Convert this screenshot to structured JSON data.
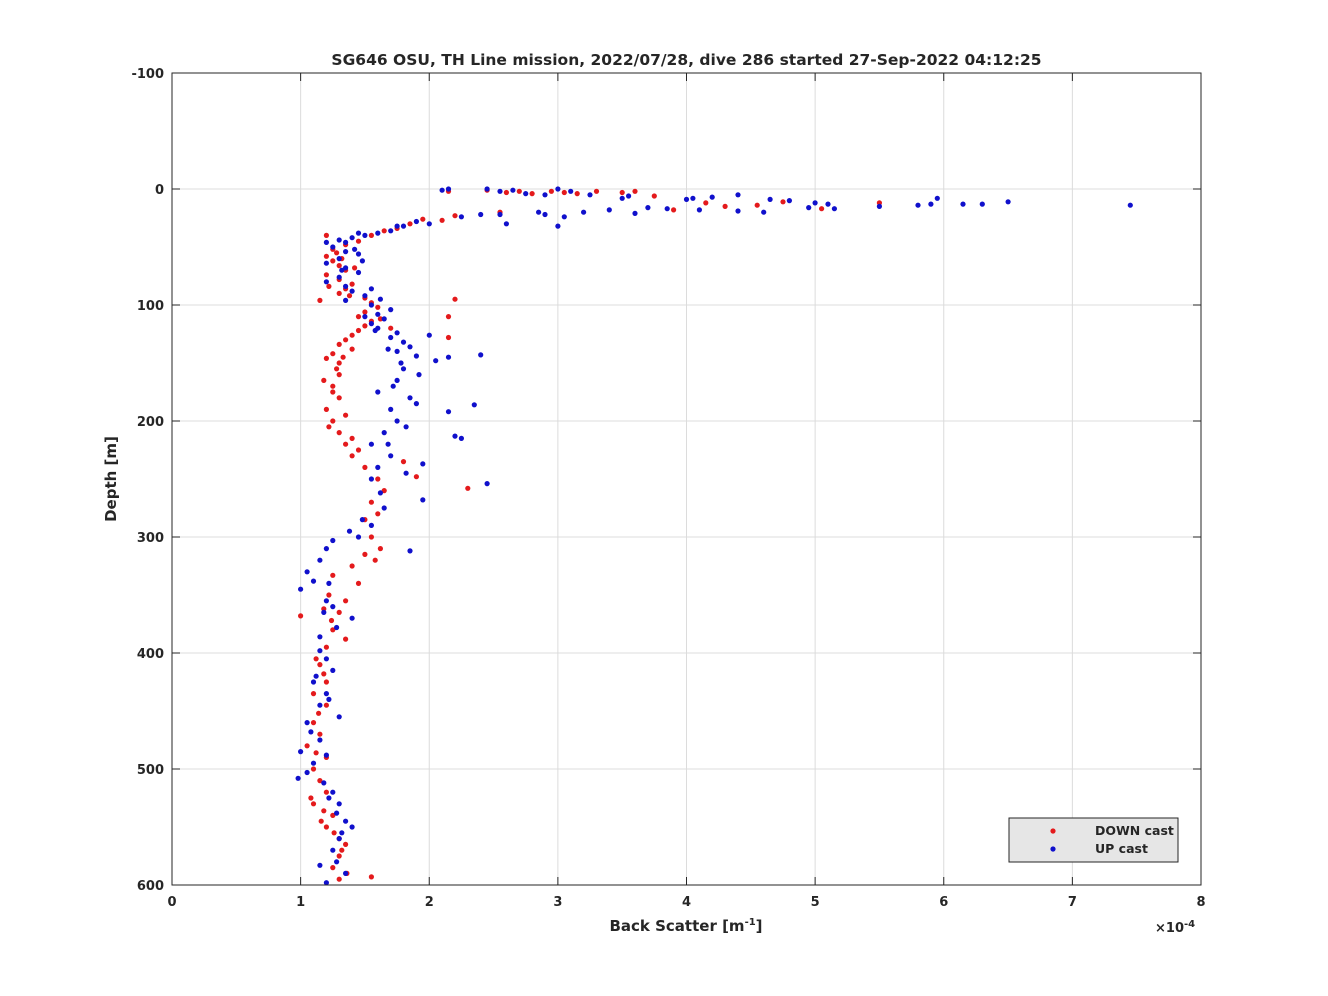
{
  "chart_data": {
    "type": "scatter",
    "title": "SG646 OSU, TH Line mission, 2022/07/28, dive 286 started 27-Sep-2022 04:12:25",
    "xlabel": "Back Scatter [m",
    "xlabel_sup": "-1",
    "xlabel_close": "]",
    "ylabel": "Depth [m]",
    "x_multiplier": "×10",
    "x_multiplier_exp": "-4",
    "xlim": [
      0,
      8
    ],
    "ylim": [
      -100,
      600
    ],
    "y_reversed": true,
    "grid": true,
    "legend_position": "bottom-right",
    "xticks": [
      0,
      1,
      2,
      3,
      4,
      5,
      6,
      7,
      8
    ],
    "xtick_labels": [
      "0",
      "1",
      "2",
      "3",
      "4",
      "5",
      "6",
      "7",
      "8"
    ],
    "yticks": [
      -100,
      0,
      100,
      200,
      300,
      400,
      500,
      600
    ],
    "ytick_labels": [
      "-100",
      "0",
      "100",
      "200",
      "300",
      "400",
      "500",
      "600"
    ],
    "series": [
      {
        "name": "DOWN cast",
        "color": "#e41a1c",
        "points": [
          [
            2.15,
            2
          ],
          [
            2.45,
            1
          ],
          [
            2.6,
            3
          ],
          [
            2.7,
            2
          ],
          [
            2.8,
            4
          ],
          [
            2.95,
            2
          ],
          [
            3.05,
            3
          ],
          [
            3.15,
            4
          ],
          [
            3.3,
            2
          ],
          [
            3.5,
            3
          ],
          [
            3.6,
            2
          ],
          [
            3.75,
            6
          ],
          [
            3.9,
            18
          ],
          [
            4.15,
            12
          ],
          [
            4.3,
            15
          ],
          [
            4.55,
            14
          ],
          [
            4.75,
            11
          ],
          [
            5.05,
            17
          ],
          [
            5.5,
            12
          ],
          [
            2.55,
            20
          ],
          [
            2.2,
            23
          ],
          [
            2.1,
            27
          ],
          [
            1.95,
            26
          ],
          [
            1.85,
            30
          ],
          [
            1.75,
            34
          ],
          [
            1.65,
            36
          ],
          [
            1.55,
            40
          ],
          [
            1.45,
            45
          ],
          [
            1.35,
            48
          ],
          [
            1.25,
            52
          ],
          [
            1.2,
            58
          ],
          [
            1.25,
            62
          ],
          [
            1.3,
            66
          ],
          [
            1.35,
            70
          ],
          [
            1.2,
            74
          ],
          [
            1.3,
            78
          ],
          [
            1.4,
            82
          ],
          [
            1.35,
            86
          ],
          [
            1.3,
            90
          ],
          [
            1.5,
            94
          ],
          [
            1.55,
            98
          ],
          [
            1.6,
            102
          ],
          [
            1.5,
            106
          ],
          [
            1.45,
            110
          ],
          [
            1.55,
            114
          ],
          [
            1.5,
            118
          ],
          [
            1.45,
            122
          ],
          [
            1.4,
            126
          ],
          [
            1.35,
            130
          ],
          [
            1.3,
            134
          ],
          [
            1.4,
            138
          ],
          [
            1.25,
            142
          ],
          [
            1.2,
            146
          ],
          [
            1.3,
            150
          ],
          [
            2.2,
            95
          ],
          [
            2.15,
            110
          ],
          [
            2.15,
            128
          ],
          [
            1.3,
            160
          ],
          [
            1.25,
            170
          ],
          [
            1.3,
            180
          ],
          [
            1.2,
            190
          ],
          [
            1.25,
            200
          ],
          [
            1.3,
            210
          ],
          [
            1.35,
            220
          ],
          [
            1.4,
            230
          ],
          [
            1.5,
            240
          ],
          [
            1.6,
            250
          ],
          [
            1.65,
            260
          ],
          [
            2.3,
            258
          ],
          [
            1.55,
            270
          ],
          [
            1.5,
            285
          ],
          [
            1.55,
            300
          ],
          [
            1.5,
            315
          ],
          [
            1.4,
            325
          ],
          [
            1.45,
            340
          ],
          [
            1.35,
            355
          ],
          [
            1.3,
            365
          ],
          [
            1.0,
            368
          ],
          [
            1.25,
            380
          ],
          [
            1.35,
            388
          ],
          [
            1.2,
            395
          ],
          [
            1.15,
            410
          ],
          [
            1.2,
            425
          ],
          [
            1.1,
            435
          ],
          [
            1.2,
            445
          ],
          [
            1.1,
            460
          ],
          [
            1.15,
            470
          ],
          [
            1.05,
            480
          ],
          [
            1.2,
            490
          ],
          [
            1.1,
            500
          ],
          [
            1.15,
            510
          ],
          [
            1.2,
            520
          ],
          [
            1.1,
            530
          ],
          [
            1.25,
            540
          ],
          [
            1.2,
            550
          ],
          [
            1.3,
            560
          ],
          [
            1.35,
            565
          ],
          [
            1.3,
            575
          ],
          [
            1.25,
            585
          ],
          [
            1.3,
            595
          ],
          [
            1.55,
            593
          ],
          [
            1.2,
            40
          ],
          [
            1.28,
            55
          ],
          [
            1.32,
            60
          ],
          [
            1.42,
            68
          ],
          [
            1.22,
            84
          ],
          [
            1.38,
            92
          ],
          [
            1.62,
            112
          ],
          [
            1.7,
            120
          ],
          [
            1.15,
            96
          ],
          [
            1.33,
            145
          ],
          [
            1.28,
            155
          ],
          [
            1.18,
            165
          ],
          [
            1.25,
            175
          ],
          [
            1.35,
            195
          ],
          [
            1.22,
            205
          ],
          [
            1.4,
            215
          ],
          [
            1.45,
            225
          ],
          [
            1.8,
            235
          ],
          [
            1.9,
            248
          ],
          [
            1.6,
            280
          ],
          [
            1.62,
            310
          ],
          [
            1.58,
            320
          ],
          [
            1.25,
            333
          ],
          [
            1.22,
            350
          ],
          [
            1.18,
            362
          ],
          [
            1.24,
            372
          ],
          [
            1.12,
            405
          ],
          [
            1.18,
            418
          ],
          [
            1.14,
            452
          ],
          [
            1.12,
            486
          ],
          [
            1.08,
            525
          ],
          [
            1.18,
            536
          ],
          [
            1.16,
            545
          ],
          [
            1.26,
            555
          ],
          [
            1.32,
            570
          ],
          [
            1.36,
            590
          ]
        ]
      },
      {
        "name": "UP cast",
        "color": "#1010cc",
        "points": [
          [
            2.1,
            1
          ],
          [
            2.15,
            0
          ],
          [
            2.45,
            0
          ],
          [
            2.55,
            2
          ],
          [
            2.65,
            1
          ],
          [
            2.75,
            4
          ],
          [
            2.9,
            5
          ],
          [
            3.0,
            0
          ],
          [
            3.1,
            2
          ],
          [
            3.25,
            5
          ],
          [
            3.5,
            8
          ],
          [
            3.55,
            6
          ],
          [
            4.0,
            9
          ],
          [
            4.05,
            8
          ],
          [
            4.2,
            7
          ],
          [
            4.4,
            5
          ],
          [
            4.65,
            9
          ],
          [
            4.8,
            10
          ],
          [
            5.0,
            12
          ],
          [
            5.1,
            13
          ],
          [
            5.5,
            15
          ],
          [
            5.8,
            14
          ],
          [
            5.9,
            13
          ],
          [
            5.95,
            8
          ],
          [
            6.15,
            13
          ],
          [
            6.3,
            13
          ],
          [
            6.5,
            11
          ],
          [
            7.45,
            14
          ],
          [
            3.7,
            16
          ],
          [
            3.85,
            17
          ],
          [
            4.1,
            18
          ],
          [
            4.4,
            19
          ],
          [
            4.6,
            20
          ],
          [
            4.95,
            16
          ],
          [
            5.15,
            17
          ],
          [
            3.4,
            18
          ],
          [
            3.6,
            21
          ],
          [
            2.55,
            22
          ],
          [
            2.85,
            20
          ],
          [
            3.05,
            24
          ],
          [
            3.2,
            20
          ],
          [
            2.4,
            22
          ],
          [
            2.25,
            24
          ],
          [
            2.6,
            30
          ],
          [
            2.9,
            22
          ],
          [
            3.0,
            32
          ],
          [
            1.9,
            28
          ],
          [
            2.0,
            30
          ],
          [
            1.8,
            32
          ],
          [
            1.7,
            36
          ],
          [
            1.6,
            38
          ],
          [
            1.5,
            40
          ],
          [
            1.4,
            42
          ],
          [
            1.3,
            44
          ],
          [
            1.2,
            46
          ],
          [
            1.25,
            50
          ],
          [
            1.35,
            54
          ],
          [
            1.45,
            56
          ],
          [
            1.3,
            60
          ],
          [
            1.2,
            64
          ],
          [
            1.35,
            68
          ],
          [
            1.45,
            72
          ],
          [
            1.3,
            76
          ],
          [
            1.2,
            80
          ],
          [
            1.35,
            84
          ],
          [
            1.4,
            88
          ],
          [
            1.5,
            92
          ],
          [
            1.35,
            96
          ],
          [
            1.55,
            100
          ],
          [
            1.7,
            104
          ],
          [
            1.6,
            108
          ],
          [
            1.65,
            112
          ],
          [
            1.55,
            116
          ],
          [
            1.6,
            120
          ],
          [
            1.75,
            124
          ],
          [
            1.7,
            128
          ],
          [
            1.8,
            132
          ],
          [
            1.85,
            136
          ],
          [
            1.75,
            140
          ],
          [
            1.9,
            144
          ],
          [
            2.0,
            126
          ],
          [
            2.05,
            148
          ],
          [
            2.15,
            145
          ],
          [
            2.4,
            143
          ],
          [
            1.8,
            155
          ],
          [
            1.75,
            165
          ],
          [
            1.6,
            175
          ],
          [
            1.85,
            180
          ],
          [
            1.7,
            190
          ],
          [
            1.9,
            185
          ],
          [
            2.15,
            192
          ],
          [
            2.35,
            186
          ],
          [
            1.75,
            200
          ],
          [
            1.65,
            210
          ],
          [
            2.2,
            213
          ],
          [
            2.25,
            215
          ],
          [
            1.55,
            220
          ],
          [
            1.7,
            230
          ],
          [
            1.6,
            240
          ],
          [
            1.95,
            237
          ],
          [
            1.55,
            250
          ],
          [
            2.45,
            254
          ],
          [
            1.95,
            268
          ],
          [
            1.65,
            275
          ],
          [
            1.55,
            290
          ],
          [
            1.45,
            300
          ],
          [
            1.85,
            312
          ],
          [
            1.25,
            303
          ],
          [
            1.2,
            310
          ],
          [
            1.15,
            320
          ],
          [
            1.05,
            330
          ],
          [
            1.1,
            338
          ],
          [
            1.0,
            345
          ],
          [
            1.2,
            355
          ],
          [
            1.4,
            370
          ],
          [
            1.25,
            360
          ],
          [
            1.15,
            398
          ],
          [
            1.2,
            405
          ],
          [
            1.25,
            415
          ],
          [
            1.1,
            425
          ],
          [
            1.2,
            435
          ],
          [
            1.15,
            445
          ],
          [
            1.3,
            455
          ],
          [
            1.05,
            460
          ],
          [
            1.15,
            475
          ],
          [
            1.2,
            488
          ],
          [
            1.0,
            485
          ],
          [
            1.1,
            495
          ],
          [
            1.05,
            503
          ],
          [
            0.98,
            508
          ],
          [
            1.25,
            520
          ],
          [
            1.3,
            530
          ],
          [
            1.35,
            545
          ],
          [
            1.4,
            550
          ],
          [
            1.3,
            560
          ],
          [
            1.25,
            570
          ],
          [
            1.15,
            583
          ],
          [
            1.35,
            590
          ],
          [
            1.2,
            598
          ],
          [
            1.75,
            32
          ],
          [
            1.45,
            38
          ],
          [
            1.35,
            46
          ],
          [
            1.42,
            52
          ],
          [
            1.48,
            62
          ],
          [
            1.32,
            70
          ],
          [
            1.55,
            86
          ],
          [
            1.62,
            95
          ],
          [
            1.5,
            110
          ],
          [
            1.58,
            122
          ],
          [
            1.68,
            138
          ],
          [
            1.78,
            150
          ],
          [
            1.92,
            160
          ],
          [
            1.72,
            170
          ],
          [
            1.82,
            205
          ],
          [
            1.68,
            220
          ],
          [
            1.82,
            245
          ],
          [
            1.62,
            262
          ],
          [
            1.48,
            285
          ],
          [
            1.38,
            295
          ],
          [
            1.22,
            340
          ],
          [
            1.18,
            365
          ],
          [
            1.28,
            378
          ],
          [
            1.15,
            386
          ],
          [
            1.12,
            420
          ],
          [
            1.22,
            440
          ],
          [
            1.08,
            468
          ],
          [
            1.18,
            512
          ],
          [
            1.22,
            525
          ],
          [
            1.28,
            538
          ],
          [
            1.32,
            555
          ],
          [
            1.28,
            580
          ]
        ]
      }
    ]
  }
}
